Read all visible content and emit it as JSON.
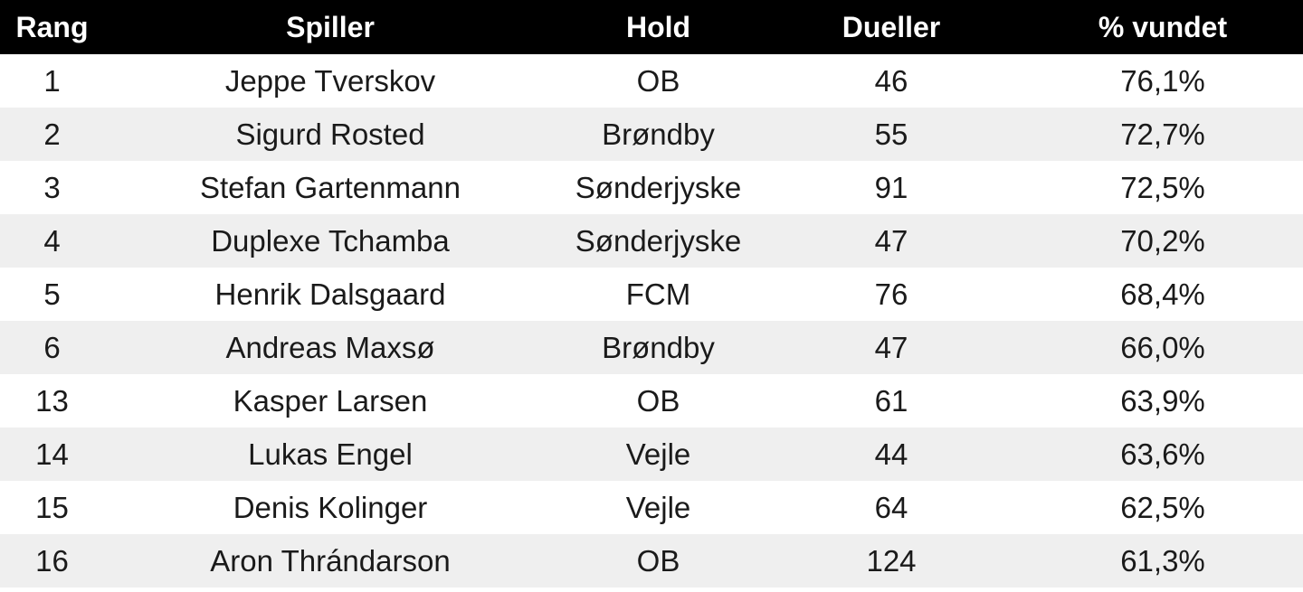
{
  "table": {
    "header": [
      "Rang",
      "Spiller",
      "Hold",
      "Dueller",
      "% vundet"
    ],
    "rows": [
      [
        "1",
        "Jeppe Tverskov",
        "OB",
        "46",
        "76,1%"
      ],
      [
        "2",
        "Sigurd Rosted",
        "Brøndby",
        "55",
        "72,7%"
      ],
      [
        "3",
        "Stefan Gartenmann",
        "Sønderjyske",
        "91",
        "72,5%"
      ],
      [
        "4",
        "Duplexe Tchamba",
        "Sønderjyske",
        "47",
        "70,2%"
      ],
      [
        "5",
        "Henrik Dalsgaard",
        "FCM",
        "76",
        "68,4%"
      ],
      [
        "6",
        "Andreas Maxsø",
        "Brøndby",
        "47",
        "66,0%"
      ],
      [
        "13",
        "Kasper Larsen",
        "OB",
        "61",
        "63,9%"
      ],
      [
        "14",
        "Lukas Engel",
        "Vejle",
        "44",
        "63,6%"
      ],
      [
        "15",
        "Denis Kolinger",
        "Vejle",
        "64",
        "62,5%"
      ],
      [
        "16",
        "Aron Thrándarson",
        "OB",
        "124",
        "61,3%"
      ]
    ]
  }
}
